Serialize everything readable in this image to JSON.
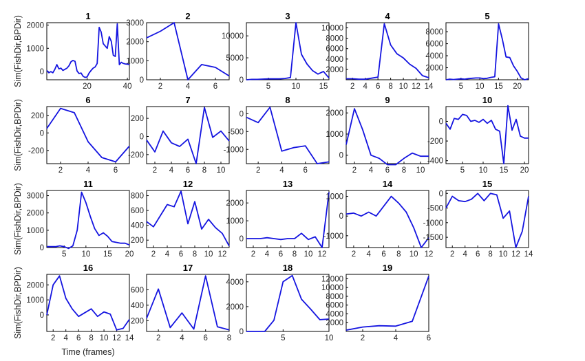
{
  "figure": {
    "xlabel": "Time (frames)",
    "ylabel": "Sim(FishDir,BPDir)"
  },
  "colors": {
    "line": "#1414e0",
    "axes": "#000000"
  },
  "chart_data": [
    {
      "type": "line",
      "title": "1",
      "xlim": [
        0,
        41
      ],
      "ylim": [
        -350,
        2100
      ],
      "xticks": [
        20,
        40
      ],
      "yticks": [
        0,
        1000,
        2000
      ],
      "x": [
        0,
        1,
        2,
        3,
        4,
        5,
        6,
        7,
        8,
        9,
        10,
        11,
        12,
        13,
        14,
        15,
        16,
        17,
        18,
        19,
        20,
        21,
        22,
        23,
        24,
        25,
        26,
        27,
        28,
        29,
        30,
        31,
        32,
        33,
        34,
        35,
        36,
        37,
        38,
        39,
        40,
        41
      ],
      "y": [
        50,
        -50,
        0,
        -50,
        100,
        300,
        120,
        150,
        50,
        100,
        150,
        250,
        420,
        480,
        440,
        30,
        -80,
        -60,
        -200,
        -250,
        -230,
        -60,
        50,
        150,
        200,
        350,
        1900,
        1700,
        1200,
        1100,
        1000,
        1500,
        1300,
        700,
        650,
        2050,
        300,
        400,
        350,
        330,
        320,
        300
      ]
    },
    {
      "type": "line",
      "title": "2",
      "xlim": [
        1,
        7
      ],
      "ylim": [
        0,
        3000
      ],
      "xticks": [
        2,
        4,
        6
      ],
      "yticks": [
        0,
        1000,
        2000,
        3000
      ],
      "x": [
        1,
        2,
        3,
        4,
        5,
        6,
        7
      ],
      "y": [
        2200,
        2550,
        3000,
        0,
        800,
        650,
        200
      ]
    },
    {
      "type": "line",
      "title": "3",
      "xlim": [
        1,
        16
      ],
      "ylim": [
        0,
        13000
      ],
      "xticks": [
        5,
        10,
        15
      ],
      "yticks": [
        0,
        5000,
        10000
      ],
      "x": [
        1,
        2,
        3,
        4,
        5,
        6,
        7,
        8,
        9,
        10,
        11,
        12,
        13,
        14,
        15,
        16
      ],
      "y": [
        0,
        100,
        100,
        150,
        200,
        200,
        200,
        300,
        500,
        13000,
        5800,
        3600,
        2100,
        1300,
        1900,
        400
      ]
    },
    {
      "type": "line",
      "title": "4",
      "xlim": [
        1,
        14
      ],
      "ylim": [
        0,
        11000
      ],
      "xticks": [
        2,
        4,
        6,
        8,
        10,
        12,
        14
      ],
      "yticks": [
        2000,
        4000,
        6000,
        8000,
        10000
      ],
      "x": [
        1,
        2,
        3,
        4,
        5,
        6,
        7,
        8,
        9,
        10,
        11,
        12,
        13,
        14
      ],
      "y": [
        200,
        200,
        100,
        100,
        300,
        500,
        10800,
        6700,
        5000,
        4200,
        3000,
        2200,
        800,
        400
      ]
    },
    {
      "type": "line",
      "title": "5",
      "xlim": [
        1,
        23
      ],
      "ylim": [
        0,
        9500
      ],
      "xticks": [
        5,
        10,
        15,
        20
      ],
      "yticks": [
        2000,
        4000,
        6000,
        8000
      ],
      "x": [
        1,
        2,
        3,
        4,
        5,
        6,
        7,
        8,
        9,
        10,
        11,
        12,
        13,
        14,
        15,
        16,
        17,
        18,
        19,
        20,
        21,
        22,
        23
      ],
      "y": [
        0,
        100,
        50,
        100,
        150,
        100,
        200,
        250,
        300,
        300,
        200,
        250,
        400,
        500,
        9300,
        6800,
        3800,
        3700,
        2300,
        1400,
        300,
        0,
        200
      ]
    },
    {
      "type": "line",
      "title": "6",
      "xlim": [
        1,
        7
      ],
      "ylim": [
        -350,
        300
      ],
      "xticks": [
        2,
        4,
        6
      ],
      "yticks": [
        -200,
        0,
        200
      ],
      "x": [
        1,
        2,
        3,
        4,
        5,
        6,
        7
      ],
      "y": [
        50,
        280,
        230,
        -100,
        -280,
        -330,
        -150
      ]
    },
    {
      "type": "line",
      "title": "7",
      "xlim": [
        1,
        11
      ],
      "ylim": [
        -300,
        330
      ],
      "xticks": [
        2,
        4,
        6,
        8,
        10
      ],
      "yticks": [
        -200,
        0,
        200
      ],
      "x": [
        1,
        2,
        3,
        4,
        5,
        6,
        7,
        8,
        9,
        10,
        11
      ],
      "y": [
        -40,
        -170,
        60,
        -70,
        -110,
        -30,
        -300,
        320,
        -10,
        60,
        -50
      ]
    },
    {
      "type": "line",
      "title": "8",
      "xlim": [
        1,
        8
      ],
      "ylim": [
        -1400,
        200
      ],
      "xticks": [
        2,
        4,
        6
      ],
      "yticks": [
        -1000,
        -500,
        0
      ],
      "x": [
        1,
        2,
        3,
        4,
        5,
        6,
        7,
        8
      ],
      "y": [
        -100,
        -250,
        180,
        -1050,
        -950,
        -900,
        -1400,
        -1350
      ]
    },
    {
      "type": "line",
      "title": "9",
      "xlim": [
        1,
        11
      ],
      "ylim": [
        -400,
        2300
      ],
      "xticks": [
        2,
        4,
        6,
        8,
        10
      ],
      "yticks": [
        0,
        1000,
        2000
      ],
      "x": [
        1,
        2,
        3,
        4,
        5,
        6,
        7,
        8,
        9,
        10,
        11
      ],
      "y": [
        500,
        2200,
        1200,
        0,
        -150,
        -450,
        -450,
        -150,
        100,
        -50,
        -50
      ]
    },
    {
      "type": "line",
      "title": "10",
      "xlim": [
        1,
        21
      ],
      "ylim": [
        -430,
        150
      ],
      "xticks": [
        5,
        10,
        15,
        20
      ],
      "yticks": [
        -400,
        -200,
        0
      ],
      "x": [
        1,
        2,
        3,
        4,
        5,
        6,
        7,
        8,
        9,
        10,
        11,
        12,
        13,
        14,
        15,
        16,
        17,
        18,
        19,
        20,
        21
      ],
      "y": [
        -20,
        -80,
        30,
        20,
        70,
        60,
        0,
        10,
        -10,
        20,
        -20,
        10,
        -80,
        -100,
        -430,
        160,
        -90,
        20,
        -150,
        -170,
        -170
      ]
    },
    {
      "type": "line",
      "title": "11",
      "xlim": [
        1,
        20
      ],
      "ylim": [
        0,
        3300
      ],
      "xticks": [
        5,
        10,
        15,
        20
      ],
      "yticks": [
        0,
        1000,
        2000,
        3000
      ],
      "x": [
        1,
        2,
        3,
        4,
        5,
        6,
        7,
        8,
        9,
        10,
        11,
        12,
        13,
        14,
        15,
        16,
        17,
        18,
        19,
        20
      ],
      "y": [
        50,
        50,
        50,
        100,
        50,
        -50,
        100,
        1000,
        3200,
        2600,
        1800,
        1100,
        700,
        850,
        650,
        350,
        300,
        250,
        250,
        150
      ]
    },
    {
      "type": "line",
      "title": "12",
      "xlim": [
        1,
        13
      ],
      "ylim": [
        100,
        870
      ],
      "xticks": [
        2,
        4,
        6,
        8,
        10,
        12
      ],
      "yticks": [
        200,
        400,
        600,
        800
      ],
      "x": [
        1,
        2,
        3,
        4,
        5,
        6,
        7,
        8,
        9,
        10,
        11,
        12,
        13
      ],
      "y": [
        450,
        380,
        530,
        680,
        650,
        860,
        420,
        720,
        350,
        480,
        370,
        290,
        120
      ]
    },
    {
      "type": "line",
      "title": "13",
      "xlim": [
        1,
        13
      ],
      "ylim": [
        -500,
        2700
      ],
      "xticks": [
        2,
        4,
        6,
        8,
        10,
        12
      ],
      "yticks": [
        0,
        1000,
        2000
      ],
      "x": [
        1,
        2,
        3,
        4,
        5,
        6,
        7,
        8,
        9,
        10,
        11,
        12,
        13
      ],
      "y": [
        0,
        0,
        0,
        50,
        0,
        -50,
        0,
        0,
        300,
        -50,
        100,
        -500,
        2600
      ]
    },
    {
      "type": "line",
      "title": "14",
      "xlim": [
        1,
        12
      ],
      "ylim": [
        -1600,
        1300
      ],
      "xticks": [
        2,
        4,
        6,
        8,
        10,
        12
      ],
      "yticks": [
        -1000,
        0,
        1000
      ],
      "x": [
        1,
        2,
        3,
        4,
        5,
        6,
        7,
        8,
        9,
        10,
        11,
        12
      ],
      "y": [
        100,
        150,
        0,
        200,
        0,
        500,
        1000,
        650,
        200,
        -600,
        -1600,
        -1100
      ]
    },
    {
      "type": "line",
      "title": "15",
      "xlim": [
        1,
        14
      ],
      "ylim": [
        -1850,
        100
      ],
      "xticks": [
        2,
        4,
        6,
        8,
        10,
        12,
        14
      ],
      "yticks": [
        -1500,
        -1000,
        -500,
        0
      ],
      "x": [
        1,
        2,
        3,
        4,
        5,
        6,
        7,
        8,
        9,
        10,
        11,
        12,
        13,
        14
      ],
      "y": [
        -500,
        -100,
        -250,
        -280,
        -200,
        0,
        -250,
        0,
        -50,
        -850,
        -600,
        -1850,
        -1300,
        -100
      ]
    },
    {
      "type": "line",
      "title": "16",
      "xlim": [
        1,
        14
      ],
      "ylim": [
        -1100,
        2700
      ],
      "xticks": [
        2,
        4,
        6,
        8,
        10,
        12,
        14
      ],
      "yticks": [
        0,
        1000,
        2000
      ],
      "x": [
        1,
        2,
        3,
        4,
        5,
        6,
        7,
        8,
        9,
        10,
        11,
        12,
        13,
        14
      ],
      "y": [
        0,
        2000,
        2600,
        1100,
        400,
        -100,
        150,
        400,
        -100,
        200,
        50,
        -1000,
        -900,
        -300
      ]
    },
    {
      "type": "line",
      "title": "17",
      "xlim": [
        1,
        8
      ],
      "ylim": [
        60,
        800
      ],
      "xticks": [
        2,
        4,
        6,
        8
      ],
      "yticks": [
        200,
        400,
        600
      ],
      "x": [
        1,
        2,
        3,
        4,
        5,
        6,
        7,
        8
      ],
      "y": [
        230,
        610,
        110,
        300,
        90,
        780,
        120,
        80
      ]
    },
    {
      "type": "line",
      "title": "18",
      "xlim": [
        1,
        10
      ],
      "ylim": [
        0,
        4600
      ],
      "xticks": [
        5,
        10
      ],
      "yticks": [
        0,
        2000,
        4000
      ],
      "x": [
        1,
        2,
        3,
        4,
        5,
        6,
        7,
        8,
        9,
        10
      ],
      "y": [
        0,
        0,
        0,
        900,
        4000,
        4500,
        2600,
        1800,
        950,
        1000
      ]
    },
    {
      "type": "line",
      "title": "19",
      "xlim": [
        1,
        6
      ],
      "ylim": [
        0,
        13000
      ],
      "xticks": [
        2,
        4,
        6
      ],
      "yticks": [
        2000,
        4000,
        6000,
        8000,
        10000,
        12000
      ],
      "x": [
        1,
        2,
        3,
        4,
        5,
        6
      ],
      "y": [
        300,
        1000,
        1300,
        1200,
        2300,
        12600
      ]
    }
  ]
}
